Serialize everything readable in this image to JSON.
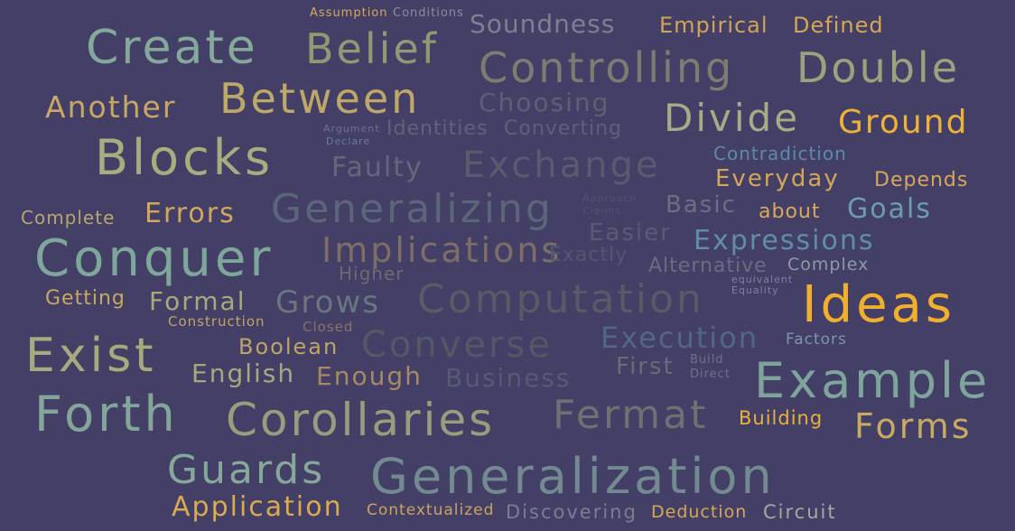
{
  "background": "#433F66",
  "words": [
    {
      "text": "Assumption",
      "color": "#D9A85A"
    },
    {
      "text": "Conditions",
      "color": "#8A8E9A"
    },
    {
      "text": "Soundness",
      "color": "#7C8190"
    },
    {
      "text": "Empirical",
      "color": "#D2A458"
    },
    {
      "text": "Defined",
      "color": "#D6A655"
    },
    {
      "text": "Create",
      "color": "#84A89A"
    },
    {
      "text": "Belief",
      "color": "#8E9A74"
    },
    {
      "text": "Controlling",
      "color": "#7E7C72"
    },
    {
      "text": "Double",
      "color": "#9DA27E"
    },
    {
      "text": "Another",
      "color": "#C9A664"
    },
    {
      "text": "Between",
      "color": "#BDA86A"
    },
    {
      "text": "Choosing",
      "color": "#5D6072"
    },
    {
      "text": "Divide",
      "color": "#A8AC86"
    },
    {
      "text": "Ground",
      "color": "#EDB236"
    },
    {
      "text": "Argument",
      "color": "#6E7390"
    },
    {
      "text": "Declare",
      "color": "#6B7A9C"
    },
    {
      "text": "Identities",
      "color": "#5E6478"
    },
    {
      "text": "Converting",
      "color": "#5C6173"
    },
    {
      "text": "Blocks",
      "color": "#A7AD7E"
    },
    {
      "text": "Faulty",
      "color": "#64677A"
    },
    {
      "text": "Exchange",
      "color": "#585B6E"
    },
    {
      "text": "Contradiction",
      "color": "#5E8BAA"
    },
    {
      "text": "Everyday",
      "color": "#D5A55A"
    },
    {
      "text": "Depends",
      "color": "#D8A658"
    },
    {
      "text": "Approach",
      "color": "#4F5370"
    },
    {
      "text": "Claims",
      "color": "#4F5370"
    },
    {
      "text": "Complete",
      "color": "#B7A76E"
    },
    {
      "text": "Errors",
      "color": "#D3A75C"
    },
    {
      "text": "Generalizing",
      "color": "#5C6679"
    },
    {
      "text": "Basic",
      "color": "#6C6F82"
    },
    {
      "text": "about",
      "color": "#D9A957"
    },
    {
      "text": "Goals",
      "color": "#6A9EAE"
    },
    {
      "text": "Easier",
      "color": "#585C72"
    },
    {
      "text": "Conquer",
      "color": "#7FA69A"
    },
    {
      "text": "Implications",
      "color": "#7D6F67"
    },
    {
      "text": "Exactly",
      "color": "#525670"
    },
    {
      "text": "Expressions",
      "color": "#5F8EAA"
    },
    {
      "text": "Higher",
      "color": "#6F6870"
    },
    {
      "text": "Alternative",
      "color": "#6A6D82"
    },
    {
      "text": "Complex",
      "color": "#8E9AA6"
    },
    {
      "text": "equivalent",
      "color": "#7A84A0"
    },
    {
      "text": "Equality",
      "color": "#7A84A0"
    },
    {
      "text": "Getting",
      "color": "#C8A862"
    },
    {
      "text": "Formal",
      "color": "#A9A97C"
    },
    {
      "text": "Grows",
      "color": "#6B7580"
    },
    {
      "text": "Computation",
      "color": "#585A66"
    },
    {
      "text": "Ideas",
      "color": "#F0B02E"
    },
    {
      "text": "Construction",
      "color": "#C4A368"
    },
    {
      "text": "Closed",
      "color": "#8C7166"
    },
    {
      "text": "Exist",
      "color": "#A8AA7E"
    },
    {
      "text": "Boolean",
      "color": "#BDA46A"
    },
    {
      "text": "Converse",
      "color": "#525868"
    },
    {
      "text": "Execution",
      "color": "#52668A"
    },
    {
      "text": "Factors",
      "color": "#7D96AA"
    },
    {
      "text": "English",
      "color": "#A6A97E"
    },
    {
      "text": "Enough",
      "color": "#A58A64"
    },
    {
      "text": "Business",
      "color": "#555B70"
    },
    {
      "text": "First",
      "color": "#6A6A78"
    },
    {
      "text": "Build",
      "color": "#6E7288"
    },
    {
      "text": "Direct",
      "color": "#6E7288"
    },
    {
      "text": "Example",
      "color": "#7EA49C"
    },
    {
      "text": "Forth",
      "color": "#84A69A"
    },
    {
      "text": "Corollaries",
      "color": "#9A9C7E"
    },
    {
      "text": "Fermat",
      "color": "#6F7072"
    },
    {
      "text": "Building",
      "color": "#EAB03C"
    },
    {
      "text": "Forms",
      "color": "#C8AA62"
    },
    {
      "text": "Guards",
      "color": "#86A898"
    },
    {
      "text": "Generalization",
      "color": "#728A90"
    },
    {
      "text": "Application",
      "color": "#D9AA50"
    },
    {
      "text": "Contextualized",
      "color": "#C9A560"
    },
    {
      "text": "Discovering",
      "color": "#7A7E90"
    },
    {
      "text": "Deduction",
      "color": "#D8A655"
    },
    {
      "text": "Circuit",
      "color": "#A4AAA0"
    }
  ]
}
